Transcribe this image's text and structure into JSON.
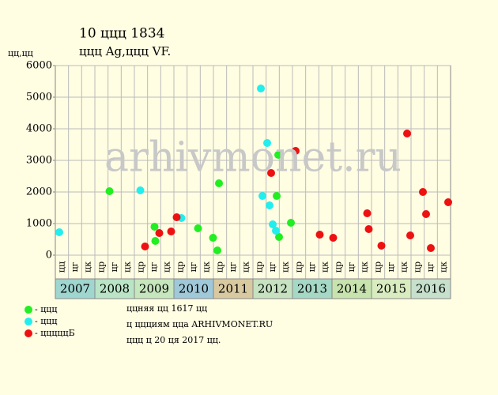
{
  "chart_data": {
    "type": "scatter",
    "title": "10 ццц 1834",
    "subtitle": "ццц Ag,ццц VF.",
    "y_label": "цц,цц",
    "watermark": "arhivmonet.ru",
    "xlim": [
      2007,
      2017
    ],
    "years": [
      "2007",
      "2008",
      "2009",
      "2010",
      "2011",
      "2012",
      "2013",
      "2014",
      "2015",
      "2016"
    ],
    "year_colors": [
      "#9fd6cf",
      "#b9e4c6",
      "#c6e6bd",
      "#9fc8d8",
      "#d9c9a0",
      "#c6e2c0",
      "#a6d8c6",
      "#c7e3ae",
      "#d8ecc0",
      "#c6e0cc"
    ],
    "period_labels": [
      "цц",
      "цг",
      "цк",
      "цр",
      "цг",
      "цк",
      "цр",
      "цг",
      "цк",
      "цр",
      "цг",
      "цк",
      "цр",
      "цг",
      "цк",
      "цр",
      "цг",
      "цк",
      "цр",
      "цг",
      "цк",
      "цр",
      "цг",
      "цк",
      "цр",
      "цг",
      "цк",
      "цр",
      "цг",
      "цк"
    ],
    "ylim": [
      0,
      6000
    ],
    "yticks": [
      0,
      1000,
      2000,
      3000,
      4000,
      5000,
      6000
    ],
    "grid": true,
    "series": [
      {
        "name": "- ццц",
        "color": "#22ee22",
        "x": [
          2008.37,
          2009.51,
          2009.53,
          2010.61,
          2010.99,
          2011.1,
          2011.14,
          2012.64,
          2012.6,
          2012.66,
          2012.96
        ],
        "values": [
          2025,
          900,
          450,
          850,
          550,
          150,
          2275,
          3175,
          1875,
          575,
          1025
        ]
      },
      {
        "name": "- ццц",
        "color": "#22eeee",
        "x": [
          2007.1,
          2009.15,
          2010.19,
          2012.2,
          2012.24,
          2012.36,
          2012.42,
          2012.5,
          2012.58
        ],
        "values": [
          725,
          2050,
          1175,
          5275,
          1875,
          3550,
          1575,
          975,
          775
        ]
      },
      {
        "name": "- цццццБ",
        "color": "#ee1111",
        "x": [
          2009.27,
          2009.63,
          2009.93,
          2010.07,
          2012.46,
          2013.08,
          2013.69,
          2014.03,
          2014.89,
          2014.93,
          2015.25,
          2015.9,
          2015.98,
          2016.3,
          2016.38,
          2016.5,
          2016.94
        ],
        "values": [
          275,
          700,
          750,
          1200,
          2600,
          3300,
          650,
          550,
          1325,
          825,
          300,
          3850,
          625,
          2000,
          1300,
          225,
          1675
        ]
      }
    ],
    "notes": [
      "ццняя цц 1617 цц",
      "ц ццциям ццa ARHIVMONET.RU",
      "ццц ц 20 ця 2017 цц."
    ]
  }
}
